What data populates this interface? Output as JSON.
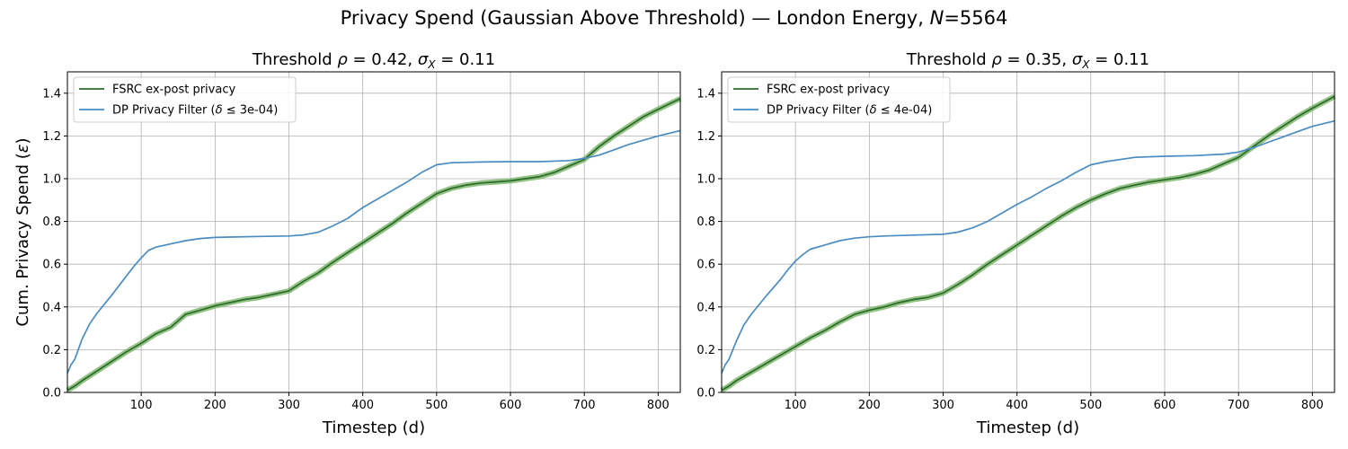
{
  "figure": {
    "title_prefix": "Privacy Spend (Gaussian Above Threshold) — London Energy, ",
    "title_n_symbol": "N",
    "title_n_value": "=5564"
  },
  "chart_data": [
    {
      "type": "line",
      "title": "Threshold ρ = 0.42, σ_X = 0.11",
      "title_parts": [
        "Threshold ",
        "ρ",
        " = 0.42, ",
        "σ",
        "X",
        " = 0.11"
      ],
      "xlabel": "Timestep (d)",
      "ylabel": "Cum. Privacy Spend (ε)",
      "xlim": [
        0,
        830
      ],
      "ylim": [
        0,
        1.5
      ],
      "xticks": [
        100,
        200,
        300,
        400,
        500,
        600,
        700,
        800
      ],
      "yticks": [
        0.0,
        0.2,
        0.4,
        0.6,
        0.8,
        1.0,
        1.2,
        1.4
      ],
      "grid": true,
      "legend_position": "top-left",
      "series": [
        {
          "name": "FSRC ex-post privacy",
          "color": "#2d6b2d",
          "band_color": "#7fb86f",
          "x": [
            0,
            10,
            20,
            40,
            60,
            80,
            100,
            120,
            140,
            160,
            180,
            200,
            220,
            240,
            260,
            280,
            300,
            320,
            340,
            360,
            380,
            400,
            420,
            440,
            460,
            480,
            500,
            520,
            540,
            560,
            580,
            600,
            620,
            640,
            660,
            680,
            700,
            720,
            740,
            760,
            780,
            800,
            830
          ],
          "y": [
            0.01,
            0.03,
            0.055,
            0.1,
            0.145,
            0.19,
            0.23,
            0.275,
            0.305,
            0.365,
            0.385,
            0.405,
            0.42,
            0.435,
            0.445,
            0.46,
            0.475,
            0.52,
            0.56,
            0.61,
            0.655,
            0.7,
            0.745,
            0.79,
            0.84,
            0.885,
            0.93,
            0.955,
            0.97,
            0.98,
            0.985,
            0.99,
            1.0,
            1.01,
            1.03,
            1.06,
            1.09,
            1.15,
            1.2,
            1.245,
            1.29,
            1.325,
            1.375
          ]
        },
        {
          "name": "DP Privacy Filter (δ ≤ 3e-04)",
          "name_parts": [
            "DP Privacy Filter (",
            "δ",
            " ≤ 3e-04)"
          ],
          "color": "#4a8cc1",
          "x": [
            0,
            5,
            10,
            20,
            30,
            40,
            60,
            80,
            90,
            100,
            110,
            120,
            140,
            160,
            180,
            200,
            220,
            260,
            300,
            320,
            340,
            360,
            380,
            400,
            420,
            440,
            460,
            480,
            500,
            520,
            560,
            600,
            640,
            680,
            700,
            720,
            740,
            760,
            780,
            800,
            830
          ],
          "y": [
            0.09,
            0.13,
            0.155,
            0.25,
            0.32,
            0.37,
            0.455,
            0.545,
            0.59,
            0.63,
            0.665,
            0.68,
            0.695,
            0.71,
            0.72,
            0.725,
            0.727,
            0.73,
            0.732,
            0.737,
            0.75,
            0.78,
            0.815,
            0.865,
            0.905,
            0.945,
            0.985,
            1.03,
            1.065,
            1.075,
            1.078,
            1.08,
            1.08,
            1.085,
            1.095,
            1.11,
            1.135,
            1.16,
            1.18,
            1.2,
            1.225
          ]
        }
      ]
    },
    {
      "type": "line",
      "title": "Threshold ρ = 0.35, σ_X = 0.11",
      "title_parts": [
        "Threshold ",
        "ρ",
        " = 0.35, ",
        "σ",
        "X",
        " = 0.11"
      ],
      "xlabel": "Timestep (d)",
      "ylabel": "",
      "xlim": [
        0,
        830
      ],
      "ylim": [
        0,
        1.5
      ],
      "xticks": [
        100,
        200,
        300,
        400,
        500,
        600,
        700,
        800
      ],
      "yticks": [
        0.0,
        0.2,
        0.4,
        0.6,
        0.8,
        1.0,
        1.2,
        1.4
      ],
      "grid": true,
      "legend_position": "top-left",
      "series": [
        {
          "name": "FSRC ex-post privacy",
          "color": "#2d6b2d",
          "band_color": "#7fb86f",
          "x": [
            0,
            10,
            20,
            40,
            60,
            80,
            100,
            120,
            140,
            160,
            180,
            200,
            220,
            240,
            260,
            280,
            300,
            320,
            340,
            360,
            380,
            400,
            420,
            440,
            460,
            480,
            500,
            520,
            540,
            560,
            580,
            600,
            620,
            640,
            660,
            680,
            700,
            720,
            740,
            760,
            780,
            800,
            830
          ],
          "y": [
            0.01,
            0.03,
            0.055,
            0.095,
            0.135,
            0.175,
            0.215,
            0.255,
            0.29,
            0.33,
            0.365,
            0.385,
            0.4,
            0.42,
            0.435,
            0.445,
            0.465,
            0.505,
            0.55,
            0.6,
            0.645,
            0.69,
            0.735,
            0.78,
            0.825,
            0.865,
            0.9,
            0.93,
            0.955,
            0.97,
            0.985,
            0.995,
            1.005,
            1.02,
            1.04,
            1.07,
            1.1,
            1.15,
            1.2,
            1.245,
            1.29,
            1.33,
            1.385
          ]
        },
        {
          "name": "DP Privacy Filter (δ ≤ 4e-04)",
          "name_parts": [
            "DP Privacy Filter (",
            "δ",
            " ≤ 4e-04)"
          ],
          "color": "#4a8cc1",
          "x": [
            0,
            5,
            10,
            20,
            30,
            40,
            60,
            80,
            90,
            100,
            110,
            120,
            140,
            160,
            180,
            200,
            220,
            260,
            300,
            320,
            340,
            360,
            380,
            400,
            420,
            440,
            460,
            480,
            500,
            520,
            560,
            600,
            640,
            680,
            700,
            720,
            740,
            760,
            780,
            800,
            830
          ],
          "y": [
            0.09,
            0.13,
            0.155,
            0.24,
            0.315,
            0.365,
            0.45,
            0.53,
            0.575,
            0.615,
            0.645,
            0.67,
            0.69,
            0.71,
            0.722,
            0.728,
            0.732,
            0.736,
            0.74,
            0.75,
            0.77,
            0.8,
            0.84,
            0.88,
            0.915,
            0.955,
            0.99,
            1.03,
            1.065,
            1.08,
            1.1,
            1.105,
            1.108,
            1.115,
            1.125,
            1.145,
            1.17,
            1.195,
            1.22,
            1.245,
            1.27
          ]
        }
      ]
    }
  ]
}
